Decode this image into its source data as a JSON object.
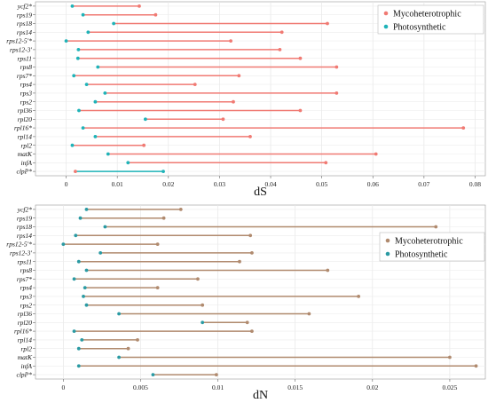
{
  "chart_data": [
    {
      "type": "dumbbell",
      "xlabel": "dS",
      "xlim": [
        -0.006,
        0.082
      ],
      "xticks": [
        0,
        0.01,
        0.02,
        0.03,
        0.04,
        0.05,
        0.06,
        0.07,
        0.08
      ],
      "xtick_labels": [
        "0",
        "0.01",
        "0.02",
        "0.03",
        "0.04",
        "0.05",
        "0.06",
        "0.07",
        "0.08"
      ],
      "legend": {
        "position": "top-right",
        "entries": [
          {
            "name": "Mycoheterotrophic",
            "color": "#f07a73"
          },
          {
            "name": "Photosynthetic",
            "color": "#1fb3b8"
          }
        ]
      },
      "genes": [
        "ycf2*",
        "rps19",
        "rps18",
        "rps14",
        "rps12-5'*",
        "rps12-3'",
        "rps11",
        "rps8",
        "rps7*",
        "rps4",
        "rps3",
        "rps2",
        "rpl36",
        "rpl20",
        "rpl16*",
        "rpl14",
        "rpl2",
        "matK",
        "infA",
        "clpP*"
      ],
      "series": [
        {
          "name": "Mycoheterotrophic",
          "color": "#f07a73",
          "values": [
            0.0143,
            0.0175,
            0.0511,
            0.0422,
            0.0322,
            0.0418,
            0.0458,
            0.0529,
            0.0338,
            0.0252,
            0.0529,
            0.0327,
            0.0458,
            0.0307,
            0.0777,
            0.036,
            0.0152,
            0.0606,
            0.0508,
            0.0018
          ]
        },
        {
          "name": "Photosynthetic",
          "color": "#1fb3b8",
          "values": [
            0.0012,
            0.0033,
            0.0093,
            0.0043,
            0.0,
            0.0024,
            0.0023,
            0.0062,
            0.0015,
            0.004,
            0.0076,
            0.0057,
            0.0025,
            0.0155,
            0.0033,
            0.0057,
            0.0012,
            0.0082,
            0.0121,
            0.019
          ]
        }
      ],
      "grid": true
    },
    {
      "type": "dumbbell",
      "xlabel": "dN",
      "xlim": [
        -0.0018,
        0.0273
      ],
      "xticks": [
        0,
        0.005,
        0.01,
        0.015,
        0.02,
        0.025
      ],
      "xtick_labels": [
        "0",
        "0.005",
        "0.01",
        "0.015",
        "0.02",
        "0.025"
      ],
      "legend": {
        "position": "right",
        "entries": [
          {
            "name": "Mycoheterotrophic",
            "color": "#b08a6e"
          },
          {
            "name": "Photosynthetic",
            "color": "#2a9aa3"
          }
        ]
      },
      "genes": [
        "ycf2*",
        "rps19",
        "rps18",
        "rps14",
        "rps12-5'*",
        "rps12-3'",
        "rps11",
        "rps8",
        "rps7*",
        "rps4",
        "rps3",
        "rps2",
        "rpl36",
        "rpl20",
        "rpl16*",
        "rpl14",
        "rpl2",
        "matK",
        "infA",
        "clpP*"
      ],
      "series": [
        {
          "name": "Mycoheterotrophic",
          "color": "#b08a6e",
          "values": [
            0.0076,
            0.0065,
            0.0241,
            0.0121,
            0.0061,
            0.0122,
            0.0114,
            0.0171,
            0.0087,
            0.0061,
            0.0191,
            0.009,
            0.0159,
            0.0119,
            0.0122,
            0.0048,
            0.0042,
            0.025,
            0.0267,
            0.0099
          ]
        },
        {
          "name": "Photosynthetic",
          "color": "#2a9aa3",
          "values": [
            0.0015,
            0.0011,
            0.0027,
            0.0008,
            0.0,
            0.0024,
            0.001,
            0.0015,
            0.0007,
            0.0014,
            0.0013,
            0.0015,
            0.0036,
            0.009,
            0.0007,
            0.0012,
            0.001,
            0.0036,
            0.001,
            0.0058
          ]
        }
      ],
      "grid": true
    }
  ]
}
